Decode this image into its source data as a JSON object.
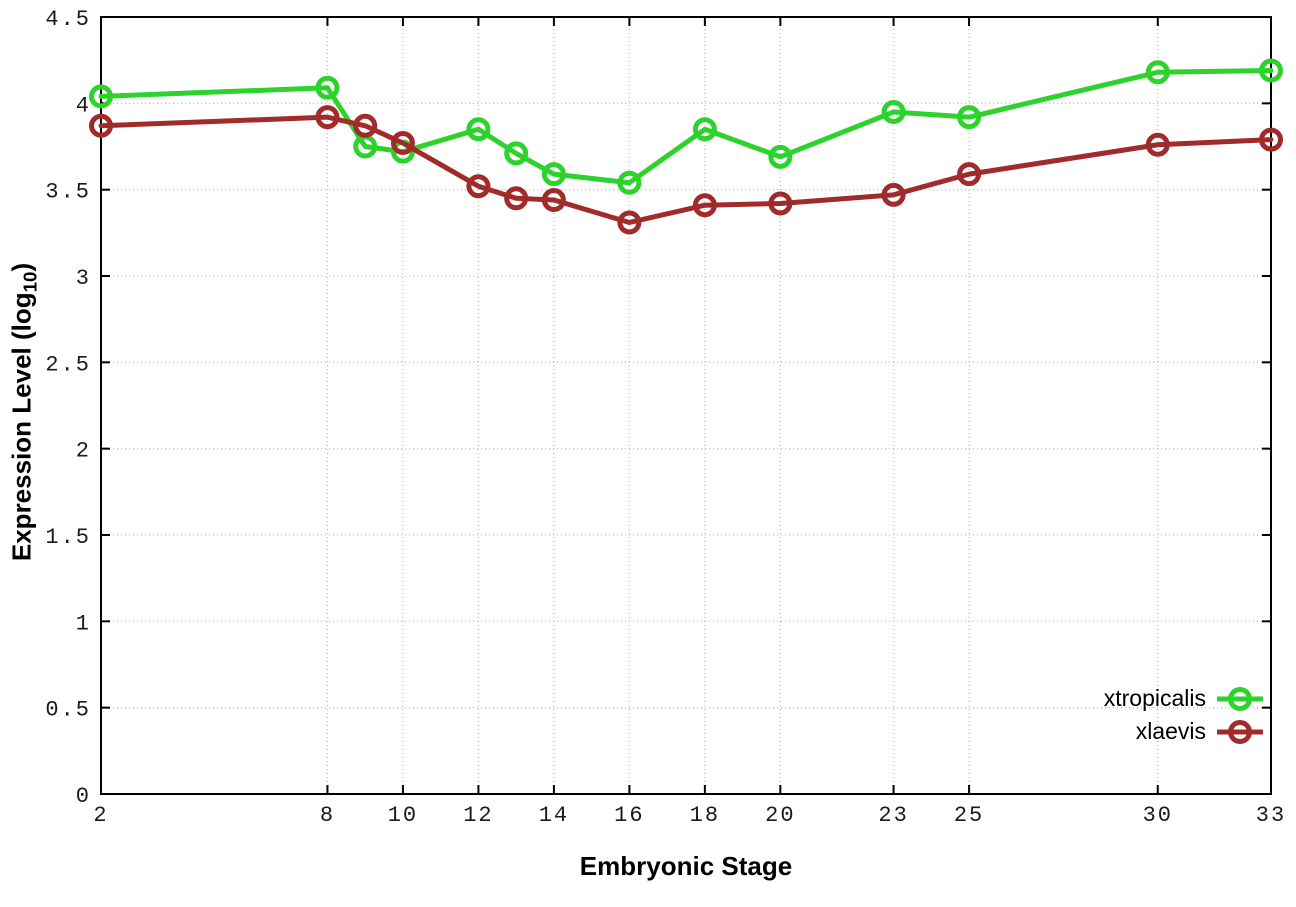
{
  "figure": {
    "background": "#ffffff",
    "border_color": "#000000",
    "grid_color": "#bdbdbd",
    "tick_text_color": "#1a1a1a"
  },
  "chart_data": {
    "type": "line",
    "title": "",
    "xlabel": "Embryonic Stage",
    "ylabel": {
      "prefix": "Expression Level (log",
      "sub": "10",
      "suffix": ")"
    },
    "xlim": [
      2,
      33
    ],
    "ylim": [
      0,
      4.5
    ],
    "grid": true,
    "grid_style": "dotted",
    "legend_position": "bottom-right-inside",
    "marker": "open-circle",
    "x_ticks": [
      2,
      8,
      10,
      12,
      14,
      16,
      18,
      20,
      23,
      25,
      30,
      33
    ],
    "y_ticks": [
      0,
      0.5,
      1,
      1.5,
      2,
      2.5,
      3,
      3.5,
      4,
      4.5
    ],
    "x": [
      2,
      8,
      9,
      10,
      12,
      13,
      14,
      16,
      18,
      20,
      23,
      25,
      30,
      33
    ],
    "series": [
      {
        "name": "xtropicalis",
        "color": "#2dd22d",
        "values": [
          4.04,
          4.09,
          3.75,
          3.72,
          3.85,
          3.71,
          3.59,
          3.54,
          3.85,
          3.69,
          3.95,
          3.92,
          4.18,
          4.19
        ]
      },
      {
        "name": "xlaevis",
        "color": "#a12a2a",
        "values": [
          3.87,
          3.92,
          3.87,
          3.77,
          3.52,
          3.45,
          3.44,
          3.31,
          3.41,
          3.42,
          3.47,
          3.59,
          3.76,
          3.79
        ]
      }
    ]
  }
}
